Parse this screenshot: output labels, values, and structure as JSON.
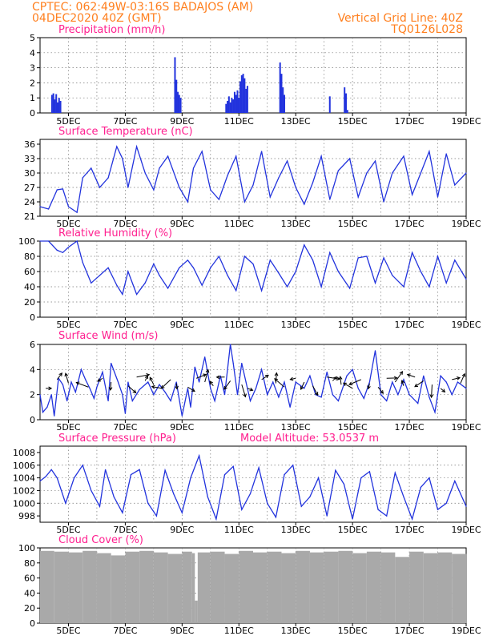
{
  "header": {
    "line1": "CPTEC:   062:49W-03:16S   BADAJOS (AM)",
    "line2": "04DEC2020 40Z (GMT)",
    "grid_note": "Vertical Grid Line: 40Z",
    "code": "TQ0126L028"
  },
  "colors": {
    "header": "#ff7f1e",
    "title": "#ff1f8f",
    "series": "#2233dd",
    "cloud": "#a9a9a9",
    "arrow": "#000000",
    "axis": "#000000"
  },
  "x_ticks": [
    "5DEC",
    "7DEC",
    "9DEC",
    "11DEC",
    "13DEC",
    "15DEC",
    "17DEC",
    "19DEC"
  ],
  "chart_data": [
    {
      "id": "precip",
      "type": "bar",
      "title": "Precipitation (mm/h)",
      "ylim": [
        0,
        5
      ],
      "yticks": [
        "0",
        "1",
        "2",
        "3",
        "4",
        "5"
      ],
      "x": [
        4.42,
        4.47,
        4.52,
        4.57,
        4.62,
        4.67,
        4.72,
        8.75,
        8.8,
        8.85,
        8.9,
        8.95,
        10.55,
        10.6,
        10.65,
        10.7,
        10.75,
        10.8,
        10.85,
        10.9,
        10.95,
        11.0,
        11.05,
        11.1,
        11.15,
        11.2,
        11.25,
        11.3,
        12.45,
        12.5,
        12.55,
        12.6,
        14.2,
        14.72,
        14.77,
        14.82
      ],
      "values": [
        1.2,
        1.3,
        0.9,
        1.25,
        0.7,
        1.0,
        0.8,
        3.7,
        2.2,
        1.4,
        1.2,
        1.0,
        0.6,
        0.8,
        1.1,
        0.7,
        1.0,
        0.9,
        1.4,
        1.2,
        1.5,
        1.0,
        2.1,
        2.5,
        2.6,
        2.3,
        1.6,
        1.8,
        3.35,
        2.6,
        1.7,
        1.2,
        1.1,
        1.7,
        1.3,
        0.2
      ]
    },
    {
      "id": "temp",
      "type": "line",
      "title": "Surface Temperature (nC)",
      "ylim": [
        21,
        37
      ],
      "yticks": [
        "21",
        "24",
        "27",
        "30",
        "33",
        "36"
      ],
      "x": [
        4.0,
        4.3,
        4.6,
        4.8,
        5.0,
        5.3,
        5.5,
        5.8,
        6.1,
        6.4,
        6.7,
        6.9,
        7.1,
        7.4,
        7.7,
        8.0,
        8.2,
        8.5,
        8.9,
        9.2,
        9.4,
        9.7,
        10.0,
        10.3,
        10.6,
        10.9,
        11.2,
        11.5,
        11.8,
        12.1,
        12.4,
        12.7,
        13.0,
        13.3,
        13.6,
        13.9,
        14.2,
        14.5,
        14.9,
        15.2,
        15.5,
        15.8,
        16.1,
        16.4,
        16.8,
        17.1,
        17.4,
        17.7,
        18.0,
        18.3,
        18.6,
        19.0
      ],
      "values": [
        23.0,
        22.5,
        26.5,
        26.7,
        23.0,
        21.8,
        29.0,
        31.0,
        27.0,
        29.0,
        35.5,
        33.0,
        27.0,
        35.5,
        30.0,
        26.5,
        31.0,
        33.5,
        27.0,
        24.0,
        31.0,
        34.5,
        26.5,
        24.5,
        29.5,
        33.5,
        24.0,
        27.5,
        34.5,
        25.0,
        29.0,
        32.5,
        27.0,
        23.5,
        28.0,
        33.5,
        24.5,
        30.5,
        33.0,
        25.0,
        30.0,
        32.5,
        24.0,
        30.0,
        33.5,
        25.5,
        30.0,
        34.5,
        25.0,
        34.0,
        27.5,
        30.0
      ]
    },
    {
      "id": "rh",
      "type": "line",
      "title": "Relative Humidity (%)",
      "ylim": [
        0,
        100
      ],
      "yticks": [
        "0",
        "20",
        "40",
        "60",
        "80",
        "100"
      ],
      "x": [
        4.0,
        4.3,
        4.6,
        4.8,
        5.0,
        5.3,
        5.5,
        5.8,
        6.1,
        6.4,
        6.7,
        6.9,
        7.1,
        7.4,
        7.7,
        8.0,
        8.2,
        8.5,
        8.9,
        9.2,
        9.4,
        9.7,
        10.0,
        10.3,
        10.6,
        10.9,
        11.2,
        11.5,
        11.8,
        12.1,
        12.4,
        12.7,
        13.0,
        13.3,
        13.6,
        13.9,
        14.2,
        14.5,
        14.9,
        15.2,
        15.5,
        15.8,
        16.1,
        16.4,
        16.8,
        17.1,
        17.4,
        17.7,
        18.0,
        18.3,
        18.6,
        19.0
      ],
      "values": [
        100,
        100,
        88,
        85,
        92,
        100,
        72,
        45,
        55,
        65,
        42,
        30,
        60,
        30,
        45,
        70,
        55,
        38,
        65,
        75,
        65,
        42,
        65,
        80,
        55,
        35,
        80,
        70,
        35,
        75,
        58,
        40,
        60,
        95,
        75,
        40,
        85,
        60,
        38,
        78,
        80,
        45,
        78,
        55,
        40,
        85,
        60,
        40,
        80,
        45,
        75,
        50
      ]
    },
    {
      "id": "wind",
      "type": "line",
      "title": "Surface Wind (m/s)",
      "ylim": [
        0,
        6
      ],
      "yticks": [
        "0",
        "2",
        "4",
        "6"
      ],
      "x": [
        4.0,
        4.1,
        4.25,
        4.4,
        4.5,
        4.65,
        4.8,
        4.95,
        5.1,
        5.25,
        5.45,
        5.6,
        5.75,
        5.9,
        6.0,
        6.2,
        6.4,
        6.5,
        6.75,
        6.9,
        7.0,
        7.1,
        7.25,
        7.5,
        7.8,
        8.0,
        8.2,
        8.4,
        8.6,
        8.8,
        9.0,
        9.2,
        9.3,
        9.45,
        9.6,
        9.8,
        10.0,
        10.15,
        10.35,
        10.5,
        10.7,
        10.8,
        10.95,
        11.1,
        11.25,
        11.4,
        11.6,
        11.8,
        12.0,
        12.2,
        12.4,
        12.6,
        12.8,
        13.0,
        13.3,
        13.5,
        13.7,
        13.9,
        14.1,
        14.3,
        14.5,
        14.8,
        15.0,
        15.2,
        15.4,
        15.6,
        15.8,
        16.0,
        16.2,
        16.4,
        16.6,
        16.8,
        17.0,
        17.3,
        17.5,
        17.7,
        17.9,
        18.1,
        18.3,
        18.5,
        18.7,
        19.0
      ],
      "values": [
        2.0,
        0.6,
        1.0,
        2.0,
        0.3,
        3.3,
        2.8,
        1.5,
        3.0,
        2.2,
        4.0,
        3.2,
        2.5,
        1.7,
        2.6,
        3.8,
        1.5,
        4.5,
        3.0,
        2.0,
        0.5,
        3.0,
        1.5,
        2.4,
        3.0,
        2.0,
        2.8,
        2.2,
        1.5,
        3.0,
        0.3,
        2.5,
        1.0,
        4.2,
        3.0,
        5.0,
        2.5,
        1.5,
        3.5,
        2.0,
        6.0,
        4.5,
        2.0,
        4.5,
        3.0,
        1.5,
        2.5,
        4.0,
        2.0,
        3.0,
        1.8,
        3.0,
        1.0,
        3.0,
        2.5,
        3.5,
        2.0,
        1.8,
        3.8,
        2.0,
        1.5,
        3.5,
        4.0,
        2.5,
        1.7,
        3.0,
        5.5,
        2.0,
        1.5,
        3.0,
        2.0,
        3.2,
        2.0,
        1.3,
        3.5,
        1.8,
        0.6,
        3.5,
        3.0,
        2.0,
        3.0,
        2.5
      ]
    },
    {
      "id": "pressure",
      "type": "line",
      "title": "Surface Pressure (hPa)",
      "note": "Model Altitude: 53.0537  m",
      "ylim": [
        997,
        1009
      ],
      "yticks": [
        "998",
        "1000",
        "1002",
        "1004",
        "1006",
        "1008"
      ],
      "x": [
        4.0,
        4.2,
        4.4,
        4.6,
        4.9,
        5.2,
        5.5,
        5.8,
        6.1,
        6.3,
        6.6,
        6.9,
        7.2,
        7.5,
        7.8,
        8.1,
        8.4,
        8.7,
        9.0,
        9.3,
        9.6,
        9.9,
        10.2,
        10.5,
        10.8,
        11.1,
        11.4,
        11.7,
        12.0,
        12.3,
        12.6,
        12.9,
        13.2,
        13.5,
        13.8,
        14.1,
        14.4,
        14.7,
        15.0,
        15.3,
        15.6,
        15.9,
        16.2,
        16.5,
        16.8,
        17.1,
        17.4,
        17.7,
        18.0,
        18.3,
        18.6,
        19.0
      ],
      "values": [
        1003.5,
        1004.2,
        1005.3,
        1004.0,
        1000.0,
        1004.0,
        1006.0,
        1002.0,
        999.5,
        1005.3,
        1001.0,
        998.5,
        1004.5,
        1005.3,
        1000.0,
        998.0,
        1005.2,
        1001.5,
        998.5,
        1004.0,
        1007.5,
        1001.0,
        997.5,
        1004.5,
        1005.8,
        999.0,
        1001.5,
        1005.6,
        1000.0,
        997.8,
        1004.5,
        1006.0,
        999.5,
        1001.0,
        1004.0,
        998.0,
        1005.2,
        1003.0,
        997.5,
        1004.0,
        1005.0,
        999.0,
        998.0,
        1004.8,
        1001.0,
        997.5,
        1002.5,
        1004.0,
        999.0,
        1000.0,
        1003.5,
        999.5
      ]
    },
    {
      "id": "cloud",
      "type": "area",
      "title": "Cloud Cover (%)",
      "ylim": [
        0,
        100
      ],
      "yticks": [
        "0",
        "20",
        "40",
        "60",
        "80",
        "100"
      ],
      "x": [
        4.0,
        4.5,
        5.0,
        5.5,
        6.0,
        6.5,
        7.0,
        7.5,
        8.0,
        8.5,
        9.0,
        9.35,
        9.45,
        9.55,
        10.0,
        10.5,
        11.0,
        11.5,
        12.0,
        12.5,
        13.0,
        13.5,
        14.0,
        14.5,
        15.0,
        15.5,
        16.0,
        16.5,
        17.0,
        17.5,
        18.0,
        18.5,
        19.0
      ],
      "values": [
        96,
        95,
        94,
        96,
        93,
        90,
        95,
        96,
        94,
        92,
        95,
        93,
        30,
        94,
        95,
        92,
        96,
        94,
        95,
        93,
        96,
        94,
        95,
        96,
        93,
        95,
        94,
        88,
        95,
        93,
        94,
        92,
        92
      ]
    }
  ]
}
